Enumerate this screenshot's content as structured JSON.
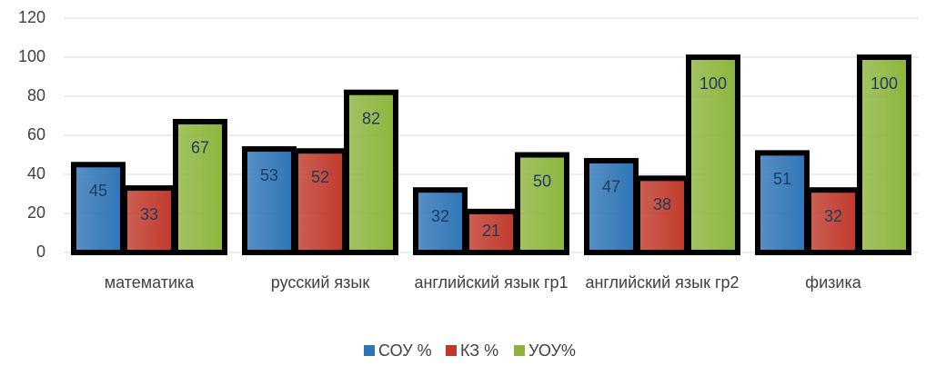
{
  "chart_data": {
    "type": "bar",
    "categories": [
      "математика",
      "русский язык",
      "английский язык гр1",
      "английский язык гр2",
      "физика"
    ],
    "series": [
      {
        "name": "СОУ %",
        "color": "#2e75b6",
        "values": [
          45,
          53,
          32,
          47,
          51
        ]
      },
      {
        "name": "КЗ %",
        "color": "#c0392b",
        "values": [
          33,
          52,
          21,
          38,
          32
        ]
      },
      {
        "name": "УОУ%",
        "color": "#8cb43c",
        "values": [
          67,
          82,
          50,
          100,
          100
        ]
      }
    ],
    "ylim": [
      0,
      120
    ],
    "yticks": [
      0,
      20,
      40,
      60,
      80,
      100,
      120
    ],
    "grid": true,
    "legend": "bottom"
  }
}
